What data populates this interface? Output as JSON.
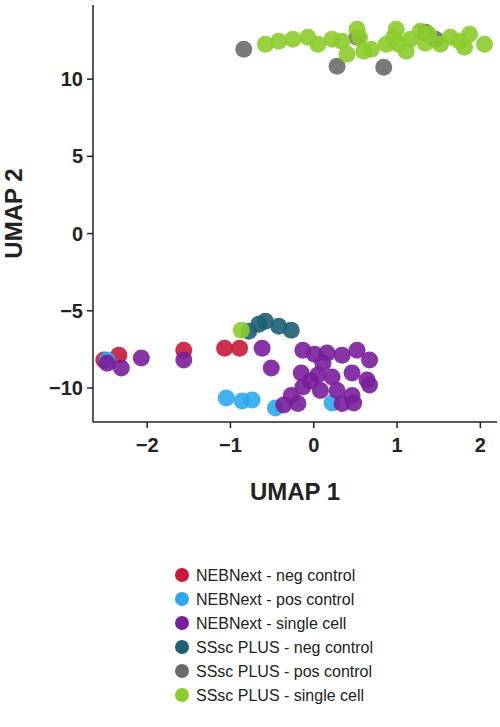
{
  "chart_data": {
    "type": "scatter",
    "x_label": "UMAP 1",
    "y_label": "UMAP 2",
    "xlim": [
      -2.65,
      2.2
    ],
    "ylim": [
      -12.2,
      14.8
    ],
    "xticks": [
      {
        "value": -2,
        "label": "−2"
      },
      {
        "value": -1,
        "label": "−1"
      },
      0,
      1,
      2
    ],
    "yticks": [
      {
        "value": -10,
        "label": "−10"
      },
      {
        "value": -5,
        "label": "−5"
      },
      0,
      5,
      10
    ],
    "grid": false,
    "legend": "bottom",
    "marker": "circle",
    "series": [
      {
        "name": "NEBNext - neg control",
        "color": "#c8193c",
        "x": [
          -2.52,
          -2.34,
          -1.56,
          -1.07,
          -0.89
        ],
        "values": [
          -8.19,
          -7.87,
          -7.55,
          -7.42,
          -7.42
        ]
      },
      {
        "name": "NEBNext - pos control",
        "color": "#2ea8ee",
        "x": [
          -2.48,
          -1.05,
          -0.86,
          -0.74,
          -0.46,
          0.22
        ],
        "values": [
          -8.19,
          -10.65,
          -10.84,
          -10.77,
          -11.29,
          -10.97
        ]
      },
      {
        "name": "NEBNext - single cell",
        "color": "#7a1e9c",
        "x": [
          -2.48,
          -2.31,
          -2.07,
          -1.56,
          -0.62,
          -0.13,
          0.01,
          0.16,
          0.34,
          0.52,
          0.67,
          -0.15,
          0.05,
          0.22,
          0.46,
          0.64,
          0.67,
          -0.13,
          0.08,
          0.28,
          0.46,
          0.34,
          -0.27,
          -0.36,
          -0.19,
          -0.04,
          0.11,
          0.48,
          -0.51
        ],
        "values": [
          -8.39,
          -8.71,
          -8.06,
          -8.19,
          -7.42,
          -7.55,
          -7.81,
          -7.74,
          -7.87,
          -7.55,
          -8.19,
          -9.03,
          -9.16,
          -9.29,
          -9.03,
          -9.48,
          -9.81,
          -9.94,
          -10.16,
          -10.16,
          -10.48,
          -11.0,
          -10.48,
          -11.1,
          -11.0,
          -9.55,
          -8.39,
          -10.97,
          -8.71
        ]
      },
      {
        "name": "SSsc PLUS - neg control",
        "color": "#1d5f73",
        "x": [
          -0.78,
          -0.66,
          -0.58,
          -0.42,
          -0.27
        ],
        "values": [
          -6.32,
          -5.87,
          -5.68,
          -6.0,
          -6.26
        ]
      },
      {
        "name": "SSsc PLUS - pos control",
        "color": "#6b6b6b",
        "x": [
          -0.84,
          0.28,
          0.52,
          0.84,
          1.34,
          1.46
        ],
        "values": [
          11.94,
          10.84,
          12.71,
          10.77,
          13.03,
          12.58
        ]
      },
      {
        "name": "SSsc PLUS - single cell",
        "color": "#8ccc2c",
        "x": [
          -0.58,
          -0.42,
          -0.25,
          -0.07,
          0.05,
          0.22,
          0.34,
          0.55,
          0.69,
          0.87,
          0.96,
          0.99,
          1.02,
          1.11,
          1.16,
          1.34,
          1.38,
          1.52,
          1.64,
          1.75,
          1.81,
          1.87,
          2.05,
          0.52,
          0.4,
          0.6,
          1.28,
          -0.87
        ],
        "values": [
          12.26,
          12.45,
          12.58,
          12.71,
          12.26,
          12.58,
          12.45,
          12.71,
          11.94,
          12.26,
          12.71,
          13.23,
          12.26,
          11.81,
          12.58,
          12.32,
          12.9,
          12.26,
          12.71,
          12.45,
          12.06,
          12.9,
          12.26,
          13.23,
          11.61,
          11.81,
          13.1,
          -6.26
        ]
      }
    ]
  }
}
